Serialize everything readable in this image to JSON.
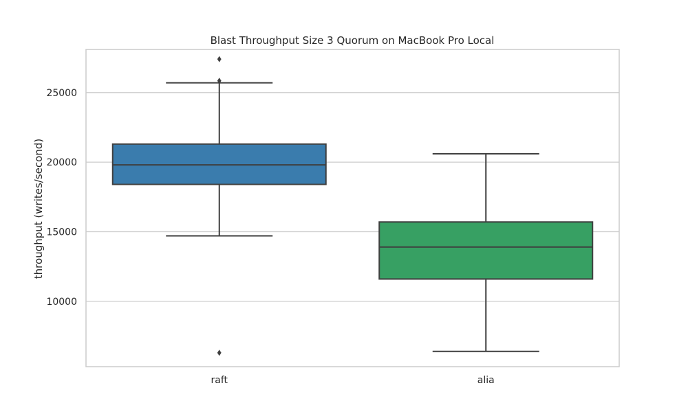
{
  "chart_data": {
    "type": "box",
    "title": "Blast Throughput Size 3 Quorum on MacBook Pro Local",
    "xlabel": "",
    "ylabel": "throughput (writes/second)",
    "ylim": [
      5300,
      28100
    ],
    "yticks": [
      10000,
      15000,
      20000,
      25000
    ],
    "grid": true,
    "categories": [
      "raft",
      "alia"
    ],
    "colors": {
      "raft": "#3a7cad",
      "alia": "#37a063"
    },
    "boxes": [
      {
        "category": "raft",
        "whisker_low": 14700,
        "q1": 18400,
        "median": 19800,
        "q3": 21300,
        "whisker_high": 25700,
        "outliers": [
          27400,
          25850,
          6300
        ]
      },
      {
        "category": "alia",
        "whisker_low": 6400,
        "q1": 11600,
        "median": 13900,
        "q3": 15700,
        "whisker_high": 20600,
        "outliers": []
      }
    ]
  }
}
